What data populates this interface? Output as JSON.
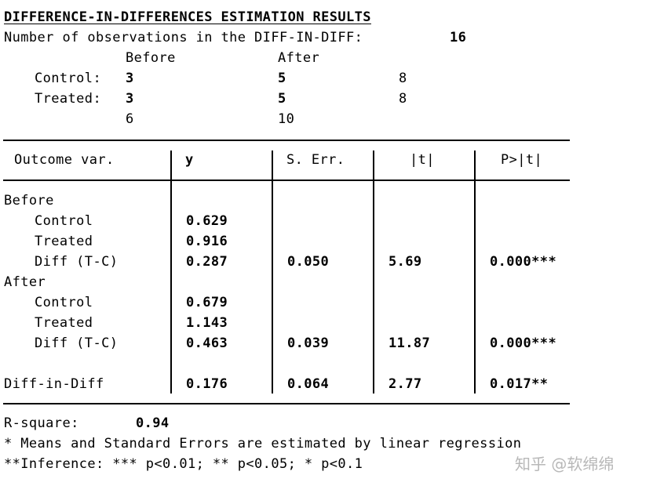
{
  "header": {
    "title": "DIFFERENCE-IN-DIFFERENCES ESTIMATION RESULTS",
    "obs_label": "Number of observations in the DIFF-IN-DIFF:",
    "obs_value": "16"
  },
  "counts": {
    "col_before": "Before",
    "col_after": "After",
    "control_label": "Control:",
    "control_before": "3",
    "control_after": "5",
    "control_total": "8",
    "treated_label": "Treated:",
    "treated_before": "3",
    "treated_after": "5",
    "treated_total": "8",
    "total_before": "6",
    "total_after": "10"
  },
  "table": {
    "headers": [
      "Outcome var.",
      "y",
      "S. Err.",
      "|t|",
      "P>|t|"
    ],
    "before_label": "Before",
    "after_label": "After",
    "before_rows": [
      {
        "label": "Control",
        "y": "0.629",
        "se": "",
        "t": "",
        "p": ""
      },
      {
        "label": "Treated",
        "y": "0.916",
        "se": "",
        "t": "",
        "p": ""
      },
      {
        "label": "Diff (T-C)",
        "y": "0.287",
        "se": "0.050",
        "t": "5.69",
        "p": "0.000***"
      }
    ],
    "after_rows": [
      {
        "label": "Control",
        "y": "0.679",
        "se": "",
        "t": "",
        "p": ""
      },
      {
        "label": "Treated",
        "y": "1.143",
        "se": "",
        "t": "",
        "p": ""
      },
      {
        "label": "Diff (T-C)",
        "y": "0.463",
        "se": "0.039",
        "t": "11.87",
        "p": "0.000***"
      }
    ],
    "did": {
      "label": "Diff-in-Diff",
      "y": "0.176",
      "se": "0.064",
      "t": "2.77",
      "p": "0.017**"
    }
  },
  "footer": {
    "rsq_label": "R-square:",
    "rsq_value": "0.94",
    "note1": "* Means and Standard Errors are estimated by linear regression",
    "note2": "**Inference: *** p<0.01; ** p<0.05; * p<0.1"
  },
  "watermark": "知乎 @软绵绵"
}
